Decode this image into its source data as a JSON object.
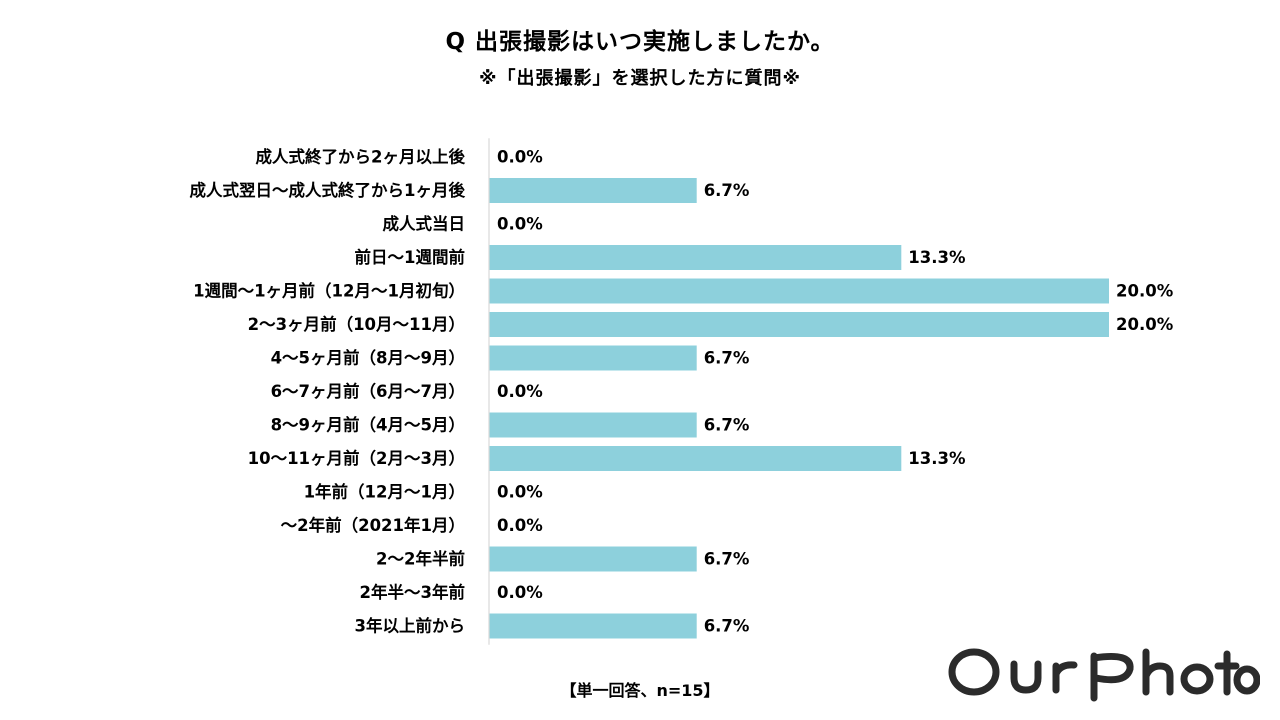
{
  "chart_data": {
    "type": "bar",
    "orientation": "horizontal",
    "title": "Q 出張撮影はいつ実施しましたか。",
    "subtitle": "※「出張撮影」を選択した方に質問※",
    "categories": [
      "成人式終了から2ヶ月以上後",
      "成人式翌日～成人式終了から1ヶ月後",
      "成人式当日",
      "前日～1週間前",
      "1週間～1ヶ月前（12月～1月初旬）",
      "2～3ヶ月前（10月～11月）",
      "4～5ヶ月前（8月～9月）",
      "6～7ヶ月前（6月～7月）",
      "8～9ヶ月前（4月～5月）",
      "10～11ヶ月前（2月～3月）",
      "1年前（12月～1月）",
      "～2年前（2021年1月）",
      "2～2年半前",
      "2年半～3年前",
      "3年以上前から"
    ],
    "values": [
      0.0,
      6.7,
      0.0,
      13.3,
      20.0,
      20.0,
      6.7,
      0.0,
      6.7,
      13.3,
      0.0,
      0.0,
      6.7,
      0.0,
      6.7
    ],
    "value_labels": [
      "0.0%",
      "6.7%",
      "0.0%",
      "13.3%",
      "20.0%",
      "20.0%",
      "6.7%",
      "0.0%",
      "6.7%",
      "13.3%",
      "0.0%",
      "0.0%",
      "6.7%",
      "0.0%",
      "6.7%"
    ],
    "xlim": [
      0,
      20
    ],
    "unit": "%",
    "bar_color": "#8dd0dc",
    "axis_color": "#d9d9d9",
    "note": "【単一回答、n=15】"
  },
  "logo": {
    "text": "OurPhoto",
    "color": "#2b2b2b"
  }
}
